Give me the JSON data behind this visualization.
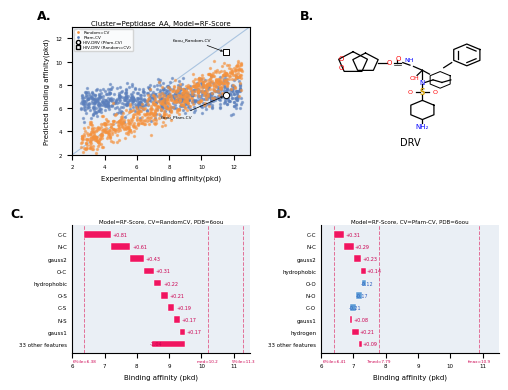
{
  "title": "Cluster=Peptidase_AA, Model=RF-Score",
  "panel_A": {
    "xlabel": "Experimental binding affinity(pkd)",
    "ylabel": "Predicted binding affinity(pkd)",
    "xlim": [
      2,
      13
    ],
    "ylim": [
      2,
      13
    ],
    "random_cv_color": "#f5923e",
    "pfam_cv_color": "#5b7fbc",
    "legend_labels": [
      "Random=CV",
      "Pfam-CV",
      "HIV-DRV (Pfam-CV)",
      "HIV-DRV (Random=CV)"
    ]
  },
  "panel_C": {
    "title": "Model=RF-Score, CV=RandomCV, PDB=6oou",
    "xlabel": "Binding affinity (pkd)",
    "features": [
      "C-C",
      "N-C",
      "gauss2",
      "O-C",
      "hydrophobic",
      "O-S",
      "C-S",
      "N-S",
      "gauss1",
      "33 other features"
    ],
    "values": [
      0.81,
      0.61,
      0.43,
      0.31,
      0.22,
      0.21,
      0.19,
      0.17,
      0.17,
      -1.04
    ],
    "bar_color_pos": "#f01560",
    "bar_color_neg": "#f01560",
    "baseline": 6.38,
    "xlim": [
      6,
      11.5
    ],
    "vlines": [
      6.38,
      10.2,
      11.3
    ],
    "vline_labels": [
      "6%ile=6.38",
      "med=10.2",
      "5%ile=11.3"
    ]
  },
  "panel_D": {
    "title": "Model=RF-Score, CV=Pfam-CV, PDB=6oou",
    "xlabel": "Binding affinity (pkd)",
    "features": [
      "C-C",
      "N-C",
      "gauss2",
      "hydrophobic",
      "O-O",
      "N-O",
      "C-O",
      "gauss1",
      "hydrogen",
      "33 other features"
    ],
    "values": [
      0.31,
      0.29,
      0.23,
      0.14,
      -0.12,
      -0.17,
      -0.21,
      0.08,
      0.21,
      0.09
    ],
    "bar_color_pos": "#f01560",
    "bar_color_neg": "#5b9bd5",
    "baseline": 6.41,
    "xlim": [
      6,
      11.5
    ],
    "vlines": [
      6.41,
      7.79,
      10.9
    ],
    "vline_labels": [
      "6%ile=6.41",
      "7med=7.79",
      "fmax=10.9"
    ]
  }
}
